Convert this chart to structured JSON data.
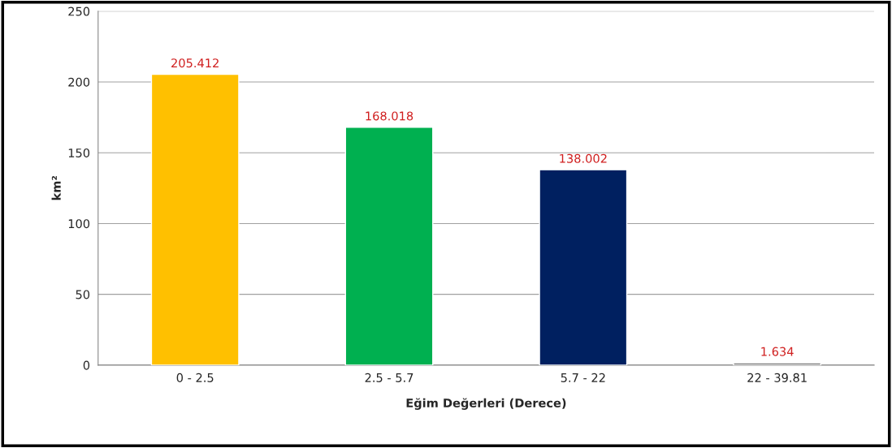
{
  "chart_data": {
    "type": "bar",
    "xlabel": "Eğim Değerleri (Derece)",
    "ylabel": "km²",
    "categories": [
      "0 - 2.5",
      "2.5 - 5.7",
      "5.7 - 22",
      "22 - 39.81"
    ],
    "values": [
      205.412,
      168.018,
      138.002,
      1.634
    ],
    "colors": [
      "#ffc000",
      "#00b050",
      "#002060",
      "#7f7f7f"
    ],
    "ylim": [
      0,
      250
    ],
    "yticks": [
      0,
      50,
      100,
      150,
      200,
      250
    ],
    "grid": "y",
    "data_labels": true
  }
}
